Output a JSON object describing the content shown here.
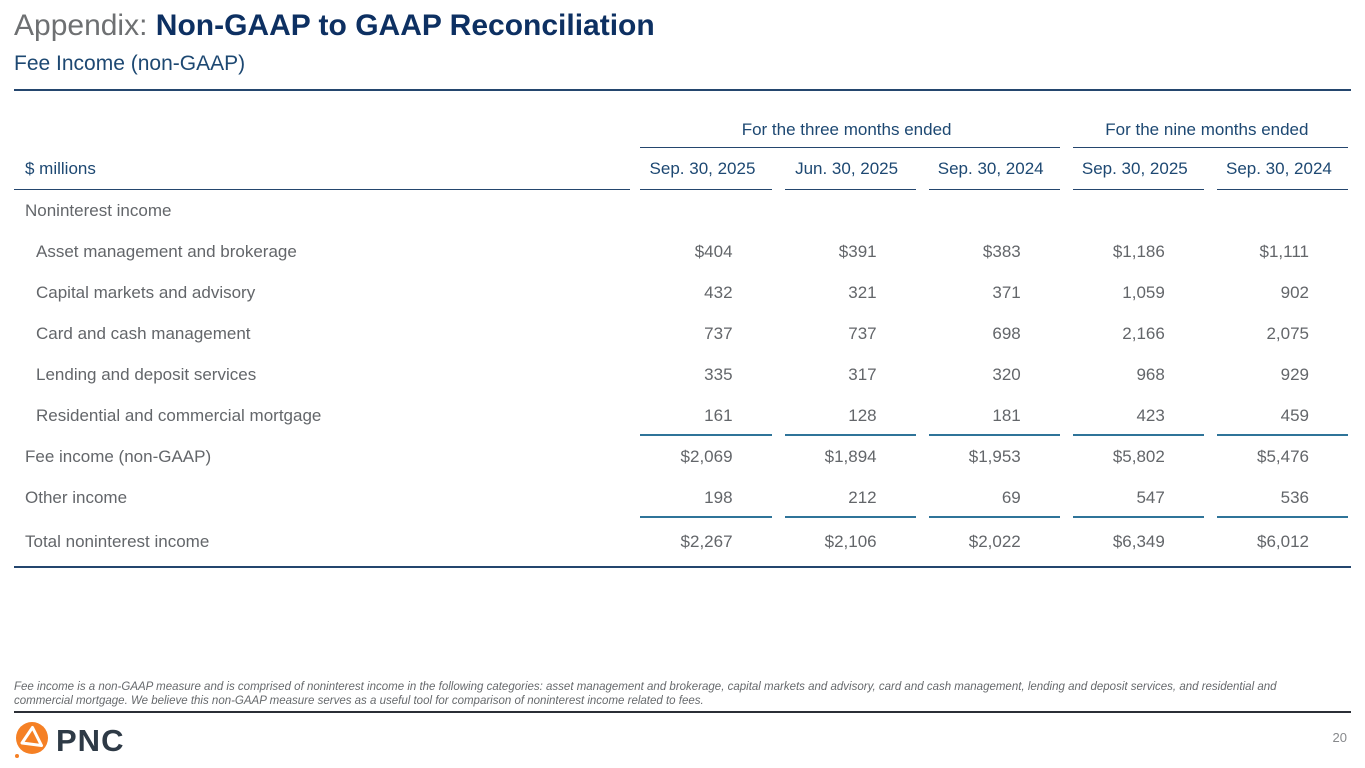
{
  "slide": {
    "title_prefix": "Appendix: ",
    "title": "Non-GAAP to GAAP Reconciliation",
    "subtitle": "Fee Income (non-GAAP)",
    "page_number": "20",
    "brand_word": "PNC"
  },
  "table": {
    "unit_label": "$ millions",
    "group_headers": [
      {
        "label": "For the three months ended",
        "span": 3
      },
      {
        "label": "For the nine months ended",
        "span": 2
      }
    ],
    "column_headers": [
      "Sep. 30, 2025",
      "Jun. 30, 2025",
      "Sep. 30, 2024",
      "Sep. 30, 2025",
      "Sep. 30, 2024"
    ],
    "rows": [
      {
        "label": "Noninterest income",
        "indent": false,
        "values": [
          "",
          "",
          "",
          "",
          ""
        ]
      },
      {
        "label": "Asset management and brokerage",
        "indent": true,
        "values": [
          "$404",
          "$391",
          "$383",
          "$1,186",
          "$1,111"
        ]
      },
      {
        "label": "Capital markets and advisory",
        "indent": true,
        "values": [
          "432",
          "321",
          "371",
          "1,059",
          "902"
        ]
      },
      {
        "label": "Card and cash management",
        "indent": true,
        "values": [
          "737",
          "737",
          "698",
          "2,166",
          "2,075"
        ]
      },
      {
        "label": "Lending and deposit services",
        "indent": true,
        "values": [
          "335",
          "317",
          "320",
          "968",
          "929"
        ]
      },
      {
        "label": "Residential and commercial mortgage",
        "indent": true,
        "values": [
          "161",
          "128",
          "181",
          "423",
          "459"
        ],
        "rule_below": true
      },
      {
        "label": "Fee income (non-GAAP)",
        "indent": false,
        "values": [
          "$2,069",
          "$1,894",
          "$1,953",
          "$5,802",
          "$5,476"
        ]
      },
      {
        "label": "Other income",
        "indent": false,
        "values": [
          "198",
          "212",
          "69",
          "547",
          "536"
        ],
        "rule_below": true
      },
      {
        "label": "Total noninterest income",
        "indent": false,
        "values": [
          "$2,267",
          "$2,106",
          "$2,022",
          "$6,349",
          "$6,012"
        ],
        "total": true
      }
    ]
  },
  "footnote": "Fee income is a non-GAAP measure and is comprised of noninterest income in the following categories: asset management and brokerage, capital markets and advisory, card and cash management, lending and deposit services, and residential and commercial mortgage. We believe this non-GAAP measure serves as a useful tool for comparison of noninterest income related to fees.",
  "colors": {
    "title_navy": "#0d3062",
    "subtitle_navy": "#1d4872",
    "rule_navy": "#24466e",
    "rule_steel_blue": "#2f7499",
    "body_gray": "#63666a",
    "brand_orange": "#f58025",
    "brand_slate": "#2e3a46"
  }
}
